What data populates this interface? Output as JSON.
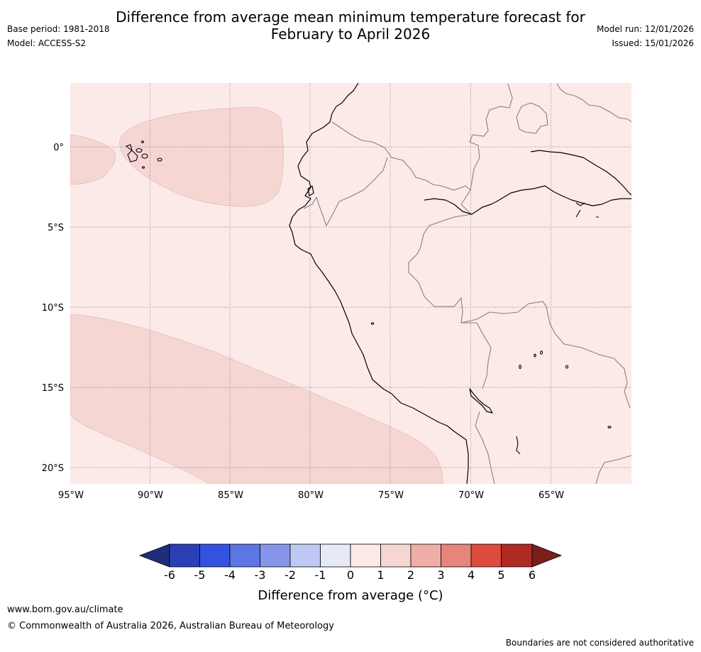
{
  "header": {
    "title_line1": "Difference from average mean minimum temperature forecast for",
    "title_line2": "February to April 2026",
    "base_period": "Base period: 1981-2018",
    "model": "Model: ACCESS-S2",
    "model_run": "Model run: 12/01/2026",
    "issued": "Issued: 15/01/2026"
  },
  "map": {
    "lon_labels": [
      "95°W",
      "90°W",
      "85°W",
      "80°W",
      "75°W",
      "70°W",
      "65°W"
    ],
    "lat_labels": [
      "0°",
      "5°S",
      "10°S",
      "15°S",
      "20°S"
    ]
  },
  "legend": {
    "tick_labels": [
      "-6",
      "-5",
      "-4",
      "-3",
      "-2",
      "-1",
      "0",
      "1",
      "2",
      "3",
      "4",
      "5",
      "6"
    ],
    "colors": [
      "#1f2e7a",
      "#2a3fb5",
      "#3352e0",
      "#5c76e6",
      "#8596ea",
      "#c0c8f4",
      "#e6e9f8",
      "#fbeae8",
      "#f5d6d3",
      "#f0aca6",
      "#e7857d",
      "#dc4b3e",
      "#b02a24",
      "#7a1f1a"
    ],
    "label": "Difference from average (°C)"
  },
  "footer": {
    "website": "www.bom.gov.au/climate",
    "copyright": "© Commonwealth of Australia 2026, Australian Bureau of Meteorology",
    "disclaimer": "Boundaries are not considered authoritative"
  }
}
